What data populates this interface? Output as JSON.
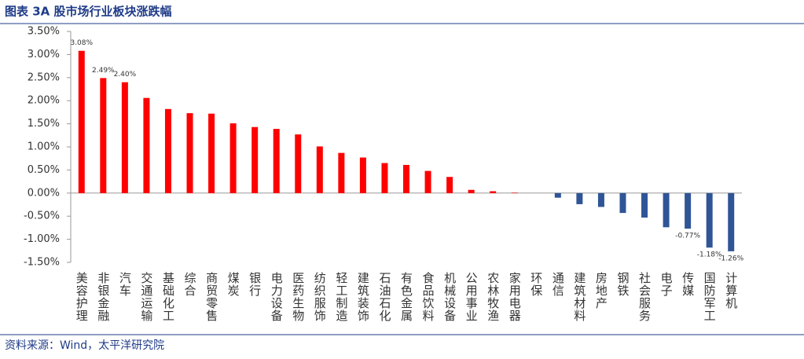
{
  "chart_data": {
    "type": "bar",
    "title": "图表 3A 股市场行业板块涨跌幅",
    "source": "资料来源：Wind，太平洋研究院",
    "categories": [
      "美容护理",
      "非银金融",
      "汽车",
      "交通运输",
      "基础化工",
      "综合",
      "商贸零售",
      "煤炭",
      "银行",
      "电力设备",
      "医药生物",
      "纺织服饰",
      "轻工制造",
      "建筑装饰",
      "石油石化",
      "有色金属",
      "食品饮料",
      "机械设备",
      "公用事业",
      "农林牧渔",
      "家用电器",
      "环保",
      "通信",
      "建筑材料",
      "房地产",
      "钢铁",
      "社会服务",
      "电子",
      "传媒",
      "国防军工",
      "计算机"
    ],
    "values": [
      3.08,
      2.49,
      2.4,
      2.06,
      1.82,
      1.73,
      1.72,
      1.51,
      1.43,
      1.39,
      1.27,
      1.01,
      0.87,
      0.77,
      0.65,
      0.61,
      0.48,
      0.35,
      0.07,
      0.04,
      0.01,
      0.0,
      -0.1,
      -0.24,
      -0.3,
      -0.43,
      -0.53,
      -0.74,
      -0.77,
      -1.18,
      -1.26
    ],
    "value_labels": [
      "3.08%",
      "2.49%",
      "2.40%",
      null,
      null,
      null,
      null,
      null,
      null,
      null,
      null,
      null,
      null,
      null,
      null,
      null,
      null,
      null,
      null,
      null,
      null,
      null,
      null,
      null,
      null,
      null,
      null,
      null,
      "-0.77%",
      "-1.18%",
      "-1.26%"
    ],
    "positive_color": "#ff0000",
    "negative_color": "#2f5597",
    "ylim": [
      -1.5,
      3.5
    ],
    "yticks": [
      {
        "value": -1.5,
        "label": "-1.50%"
      },
      {
        "value": -1.0,
        "label": "-1.00%"
      },
      {
        "value": -0.5,
        "label": "-0.50%"
      },
      {
        "value": 0,
        "label": "0.00%"
      },
      {
        "value": 0.5,
        "label": "0.50%"
      },
      {
        "value": 1.0,
        "label": "1.00%"
      },
      {
        "value": 1.5,
        "label": "1.50%"
      },
      {
        "value": 2.0,
        "label": "2.00%"
      },
      {
        "value": 2.5,
        "label": "2.50%"
      },
      {
        "value": 3.0,
        "label": "3.00%"
      },
      {
        "value": 3.5,
        "label": "3.50%"
      }
    ],
    "grid": false
  }
}
